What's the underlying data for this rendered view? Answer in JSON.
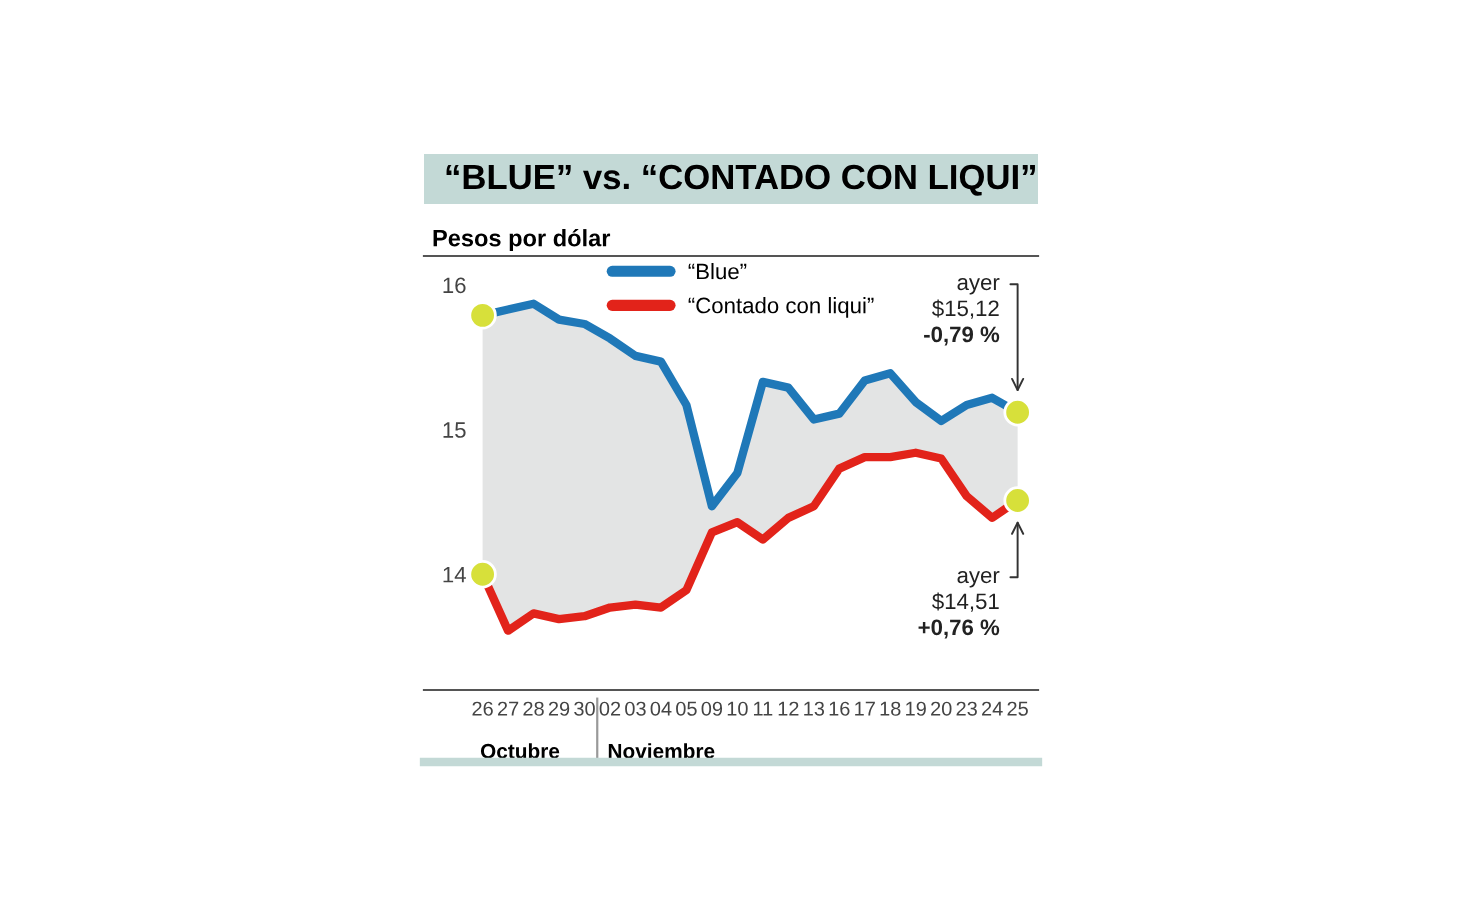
{
  "chart_data": {
    "type": "line",
    "title": "“BLUE” vs. “CONTADO CON LIQUI”",
    "ylabel": "Pesos por dólar",
    "categories": [
      "26",
      "27",
      "28",
      "29",
      "30",
      "02",
      "03",
      "04",
      "05",
      "09",
      "10",
      "11",
      "12",
      "13",
      "16",
      "17",
      "18",
      "19",
      "20",
      "23",
      "24",
      "25"
    ],
    "series": [
      {
        "name": "“Blue”",
        "color": "#1f78b8",
        "values": [
          15.79,
          15.83,
          15.87,
          15.76,
          15.73,
          15.63,
          15.51,
          15.47,
          15.17,
          14.47,
          14.7,
          15.33,
          15.29,
          15.07,
          15.11,
          15.34,
          15.39,
          15.19,
          15.06,
          15.17,
          15.22,
          15.12
        ],
        "lower": [
          14.0,
          13.61,
          13.73,
          13.69,
          13.71,
          13.77,
          13.79,
          13.77,
          13.89,
          14.29,
          14.36,
          14.24,
          14.39,
          14.47,
          14.73,
          14.81,
          14.81,
          14.84,
          14.8,
          14.54,
          14.39,
          14.51
        ],
        "upper": [
          15.79,
          15.83,
          15.87,
          15.76,
          15.73,
          15.63,
          15.51,
          15.47,
          15.17,
          14.47,
          14.7,
          15.33,
          15.29,
          15.07,
          15.11,
          15.34,
          15.39,
          15.19,
          15.06,
          15.17,
          15.22,
          15.12
        ]
      },
      {
        "name": "“Contado con liqui”",
        "color": "#e2231a",
        "values": [
          14.0,
          13.61,
          13.73,
          13.69,
          13.71,
          13.77,
          13.79,
          13.77,
          13.89,
          14.29,
          14.36,
          14.24,
          14.39,
          14.47,
          14.73,
          14.81,
          14.81,
          14.84,
          14.8,
          14.54,
          14.39,
          14.51
        ]
      },
      {
        "type": "scatter",
        "marker": "circle",
        "color": "#d7e03a",
        "x": [
          "26",
          "25"
        ],
        "values": [
          15.79,
          15.12
        ]
      },
      {
        "type": "scatter",
        "marker": "circle",
        "color": "#d7e03a",
        "x": [
          "26",
          "25"
        ],
        "values": [
          14.0,
          14.51
        ]
      }
    ],
    "ylim": [
      13.2,
      16.2
    ],
    "yticks": [
      14,
      15,
      16
    ],
    "grid": false,
    "legend": "top",
    "line_style": "solid",
    "annotations": [
      "ayer\n$15,12\n-0,79 %",
      "ayer\n$14,51\n+0,76 %",
      "Octubre",
      "Noviembre"
    ]
  }
}
